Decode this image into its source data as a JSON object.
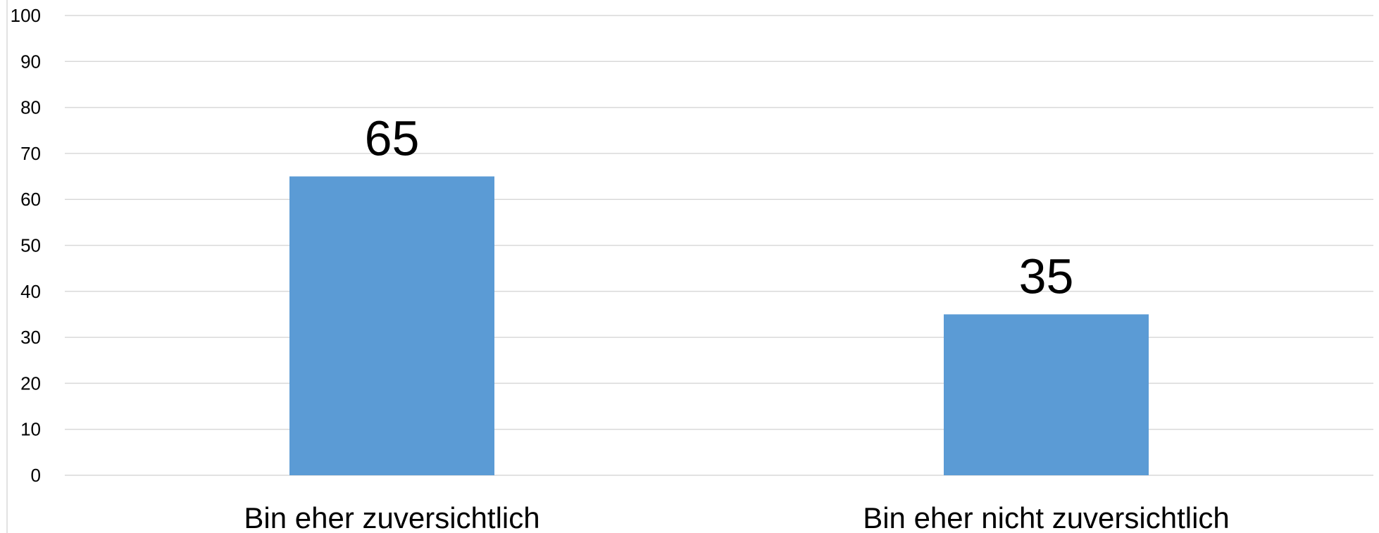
{
  "chart_data": {
    "type": "bar",
    "title": "",
    "xlabel": "",
    "ylabel": "",
    "categories": [
      "Bin eher zuversichtlich",
      "Bin eher nicht zuversichtlich"
    ],
    "values": [
      65,
      35
    ],
    "data_labels": [
      "65",
      "35"
    ],
    "ylim": [
      0,
      100
    ],
    "yticks": [
      0,
      10,
      20,
      30,
      40,
      50,
      60,
      70,
      80,
      90,
      100
    ],
    "ytick_labels": [
      "0",
      "10",
      "20",
      "30",
      "40",
      "50",
      "60",
      "70",
      "80",
      "90",
      "100"
    ],
    "grid": true,
    "legend": "none",
    "colors": {
      "bar": "#5b9bd5",
      "grid": "#d9d9d9",
      "text": "#000000"
    }
  }
}
